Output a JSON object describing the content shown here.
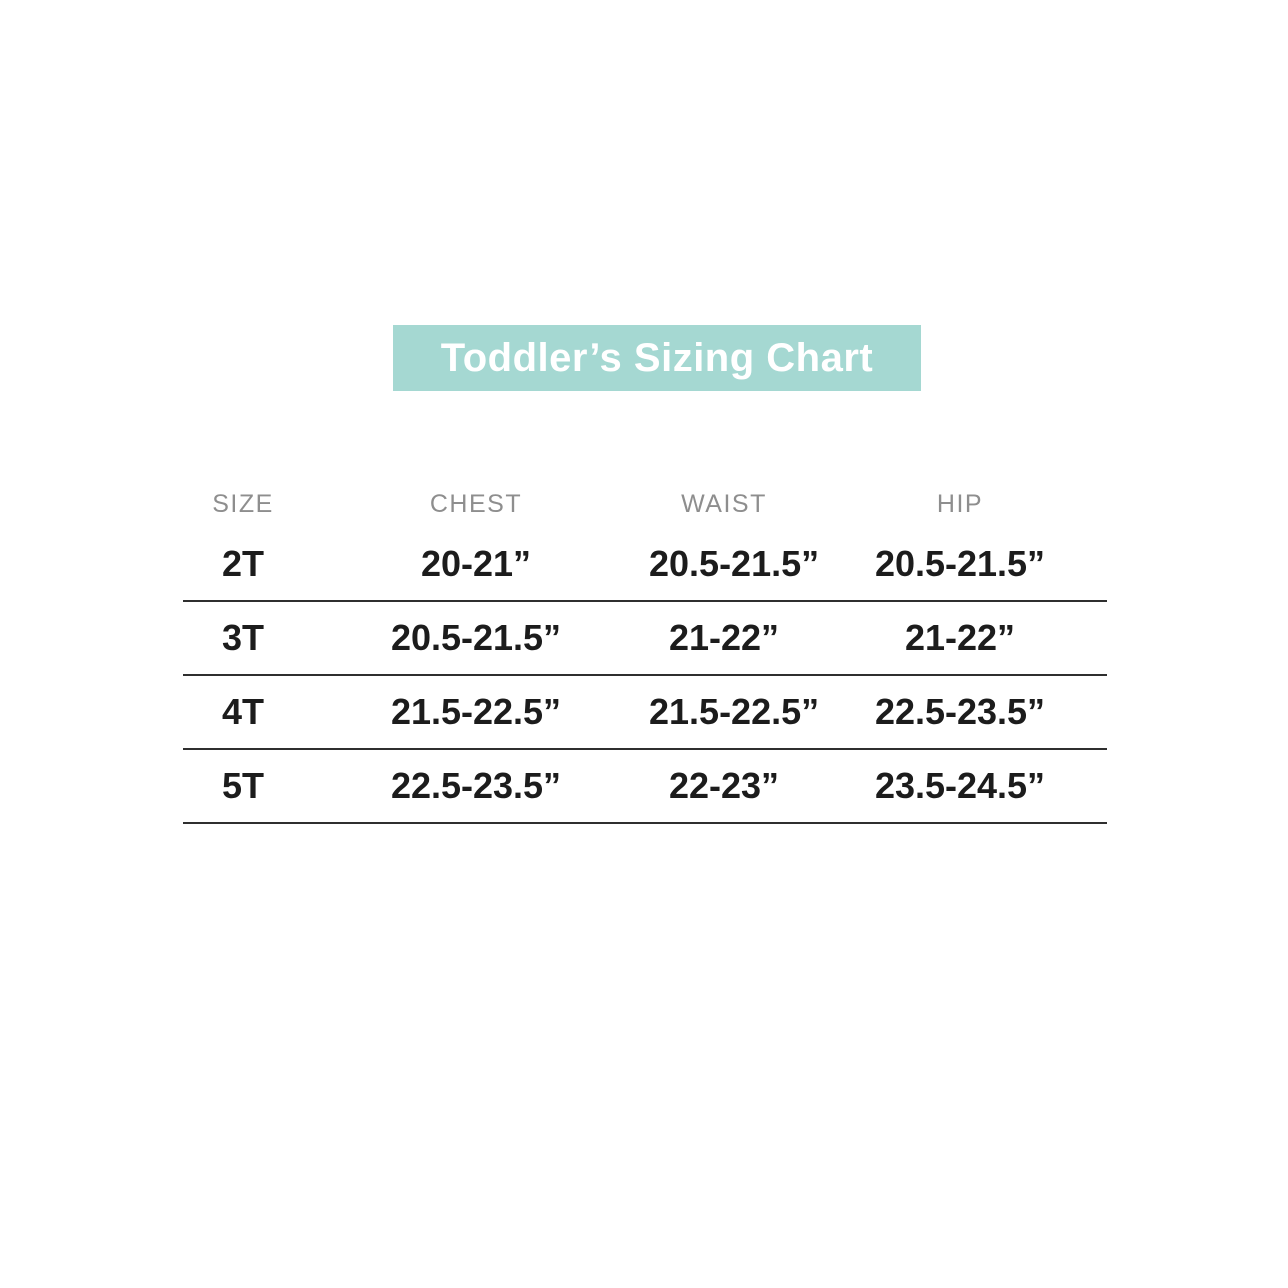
{
  "banner": {
    "title": "Toddler’s Sizing Chart",
    "background_color": "#a5d8d2",
    "text_color": "#ffffff"
  },
  "colors": {
    "header_text": "#8e8e8e",
    "body_text": "#1c1c1c",
    "row_divider": "#2f2f2f",
    "page_background": "#ffffff"
  },
  "chart_data": {
    "type": "table",
    "title": "Toddler’s Sizing Chart",
    "columns": [
      "SIZE",
      "CHEST",
      "WAIST",
      "HIP"
    ],
    "rows": [
      [
        "2T",
        "20-21”",
        "20.5-21.5”",
        "20.5-21.5”"
      ],
      [
        "3T",
        "20.5-21.5”",
        "21-22”",
        "21-22”"
      ],
      [
        "4T",
        "21.5-22.5”",
        "21.5-22.5”",
        "22.5-23.5”"
      ],
      [
        "5T",
        "22.5-23.5”",
        "22-23”",
        "23.5-24.5”"
      ]
    ],
    "layout_hints": {
      "grid": "horizontal rules below each data row only",
      "header_style": "uppercase gray letterspaced",
      "value_style": "bold dark"
    }
  }
}
